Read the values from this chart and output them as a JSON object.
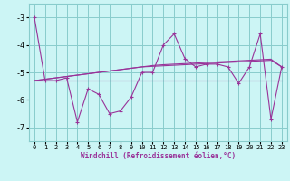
{
  "x": [
    0,
    1,
    2,
    3,
    4,
    5,
    6,
    7,
    8,
    9,
    10,
    11,
    12,
    13,
    14,
    15,
    16,
    17,
    18,
    19,
    20,
    21,
    22,
    23
  ],
  "line1": [
    -3.0,
    -5.3,
    -5.3,
    -5.2,
    -6.8,
    -5.6,
    -5.8,
    -6.5,
    -6.4,
    -5.9,
    -5.0,
    -5.0,
    -4.0,
    -3.6,
    -4.5,
    -4.8,
    -4.7,
    -4.7,
    -4.8,
    -5.4,
    -4.8,
    -3.6,
    -6.7,
    -4.8
  ],
  "line_flat1": [
    -5.3,
    -5.3,
    -5.3,
    -5.3,
    -5.3,
    -5.3,
    -5.3,
    -5.3,
    -5.3,
    -5.3,
    -5.3,
    -5.3,
    -5.3,
    -5.3,
    -5.3,
    -5.3,
    -5.3,
    -5.3,
    -5.3,
    -5.3,
    -5.3,
    -5.3,
    -5.3,
    -5.3
  ],
  "line_up1": [
    -5.3,
    -5.25,
    -5.2,
    -5.15,
    -5.1,
    -5.05,
    -5.0,
    -4.95,
    -4.9,
    -4.85,
    -4.8,
    -4.78,
    -4.76,
    -4.74,
    -4.72,
    -4.7,
    -4.68,
    -4.66,
    -4.64,
    -4.62,
    -4.6,
    -4.58,
    -4.56,
    -4.8
  ],
  "line_up2": [
    -5.3,
    -5.25,
    -5.2,
    -5.15,
    -5.1,
    -5.05,
    -5.0,
    -4.95,
    -4.9,
    -4.85,
    -4.8,
    -4.75,
    -4.72,
    -4.7,
    -4.68,
    -4.66,
    -4.64,
    -4.62,
    -4.6,
    -4.58,
    -4.56,
    -4.54,
    -4.52,
    -4.8
  ],
  "main_color": "#993399",
  "bg_color": "#ccf5f5",
  "grid_color": "#88cccc",
  "xlabel": "Windchill (Refroidissement éolien,°C)",
  "ylim": [
    -7.5,
    -2.5
  ],
  "xlim": [
    0,
    23
  ],
  "yticks": [
    -7,
    -6,
    -5,
    -4,
    -3
  ],
  "xticks": [
    0,
    1,
    2,
    3,
    4,
    5,
    6,
    7,
    8,
    9,
    10,
    11,
    12,
    13,
    14,
    15,
    16,
    17,
    18,
    19,
    20,
    21,
    22,
    23
  ]
}
